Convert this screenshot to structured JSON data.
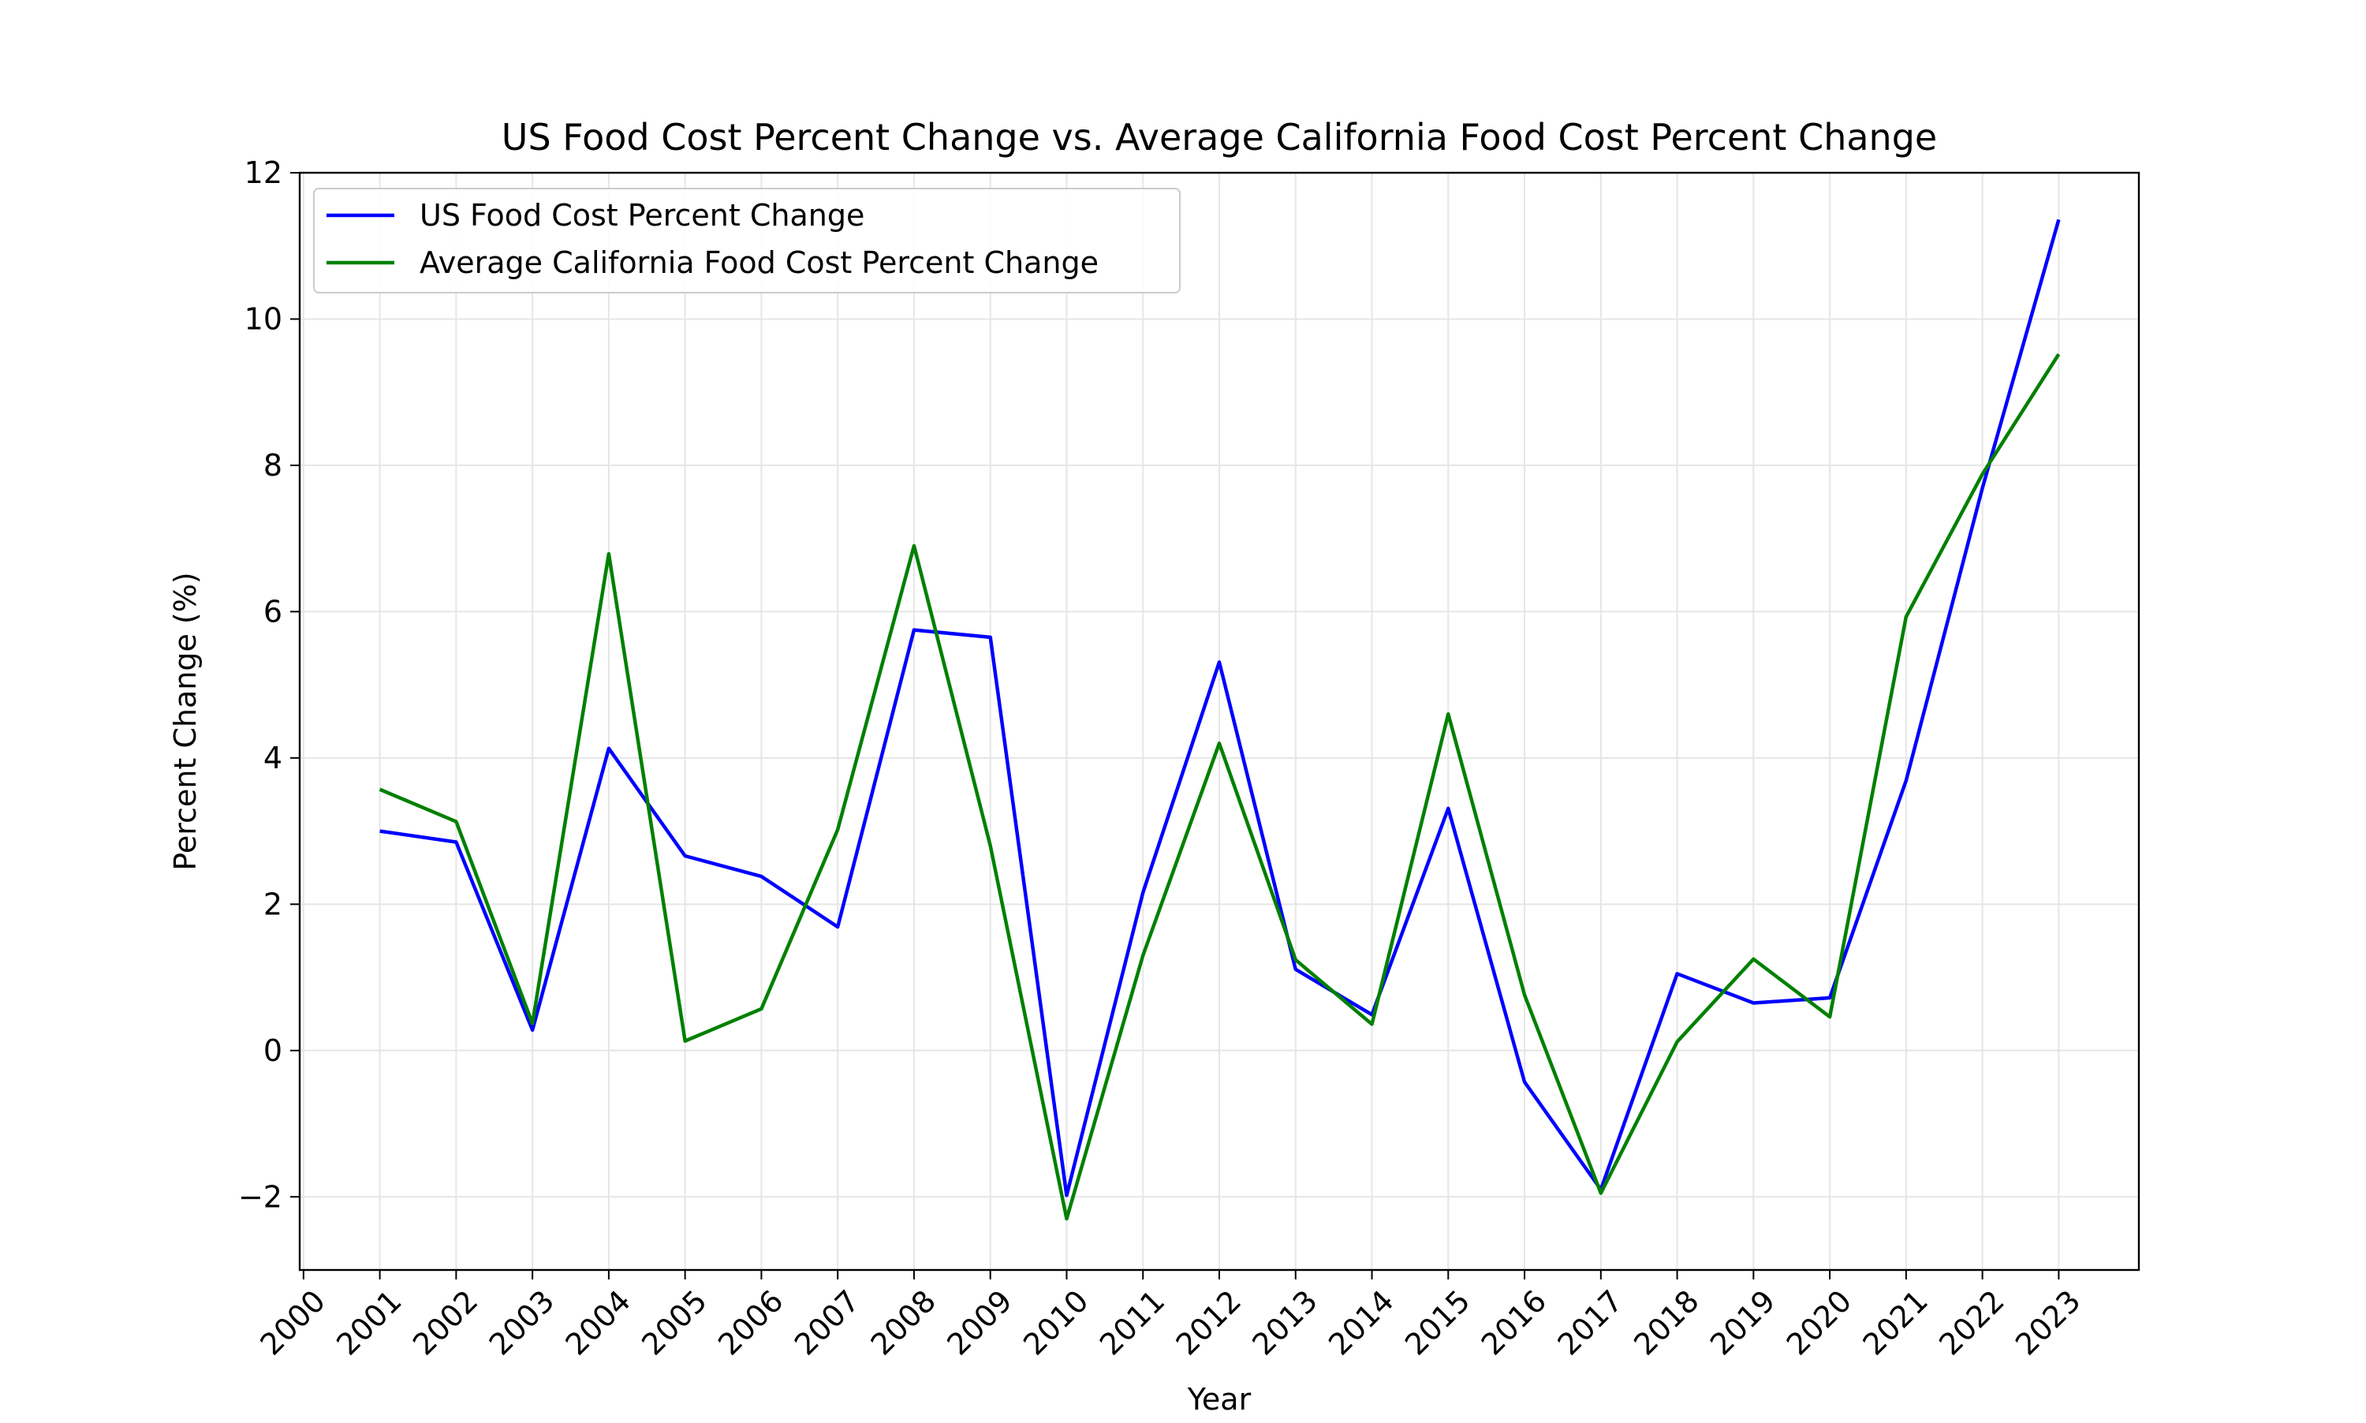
{
  "chart_data": {
    "type": "line",
    "title": "US Food Cost Percent Change vs. Average California Food Cost Percent Change",
    "xlabel": "Year",
    "ylabel": "Percent Change (%)",
    "xlim": [
      1999.95,
      2024.05
    ],
    "ylim": [
      -3,
      12
    ],
    "x_ticks": [
      "2000",
      "2001",
      "2002",
      "2003",
      "2004",
      "2005",
      "2006",
      "2007",
      "2008",
      "2009",
      "2010",
      "2011",
      "2012",
      "2013",
      "2014",
      "2015",
      "2016",
      "2017",
      "2018",
      "2019",
      "2020",
      "2021",
      "2022",
      "2023"
    ],
    "y_ticks": [
      -2,
      0,
      2,
      4,
      6,
      8,
      10,
      12
    ],
    "y_tick_labels": [
      "−2",
      "0",
      "2",
      "4",
      "6",
      "8",
      "10",
      "12"
    ],
    "grid": true,
    "legend_position": "upper-left",
    "x": [
      2001,
      2002,
      2003,
      2004,
      2005,
      2006,
      2007,
      2008,
      2009,
      2010,
      2011,
      2012,
      2013,
      2014,
      2015,
      2016,
      2017,
      2018,
      2019,
      2020,
      2021,
      2022,
      2023
    ],
    "series": [
      {
        "name": "US Food Cost Percent Change",
        "color": "#0000ff",
        "values": [
          3.0,
          2.85,
          0.28,
          4.13,
          2.66,
          2.38,
          1.69,
          5.75,
          5.65,
          -1.98,
          2.16,
          5.31,
          1.11,
          0.49,
          3.31,
          -0.43,
          -1.9,
          1.05,
          0.65,
          0.72,
          3.69,
          7.69,
          11.36
        ]
      },
      {
        "name": "Average California Food Cost Percent Change",
        "color": "#008000",
        "values": [
          3.57,
          3.13,
          0.37,
          6.79,
          0.13,
          0.57,
          3.02,
          6.9,
          2.8,
          -2.3,
          1.3,
          4.2,
          1.24,
          0.36,
          4.6,
          0.76,
          -1.95,
          0.12,
          1.25,
          0.46,
          5.93,
          7.88,
          9.52
        ]
      }
    ]
  }
}
